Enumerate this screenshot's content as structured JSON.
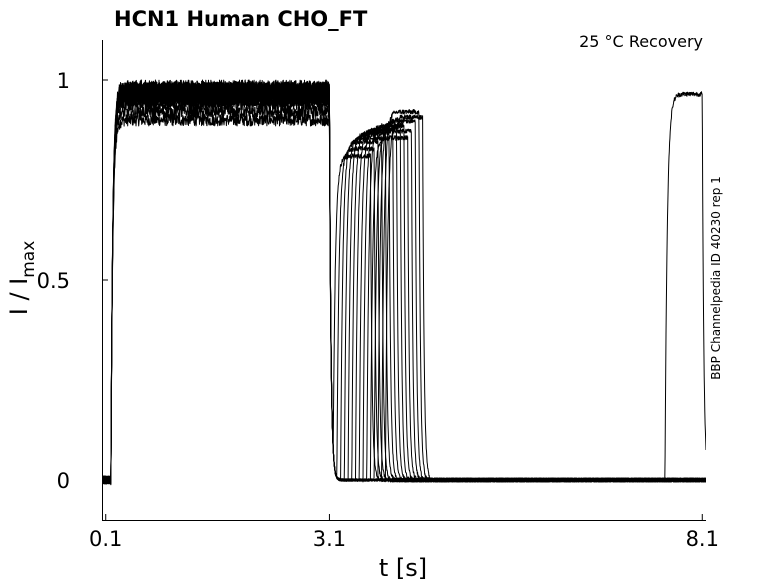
{
  "chart_data": {
    "type": "line",
    "title": "HCN1  Human  CHO_FT",
    "subtitle": "25 °C  Recovery",
    "side_label": "BBP Channelpedia ID 40230 rep 1",
    "xlabel": "t [s]",
    "ylabel_main": "I / I",
    "ylabel_sub": "max",
    "xlim": [
      0.05,
      8.15
    ],
    "ylim": [
      -0.1,
      1.1
    ],
    "x_ticks": [
      {
        "value": 0.1,
        "label": "0.1"
      },
      {
        "value": 3.1,
        "label": "3.1"
      },
      {
        "value": 8.1,
        "label": "8.1"
      }
    ],
    "y_ticks": [
      {
        "value": 0,
        "label": "0"
      },
      {
        "value": 0.5,
        "label": "0.5"
      },
      {
        "value": 1,
        "label": "1"
      }
    ],
    "grid": false,
    "legend": "none",
    "protocol": {
      "baseline_level": 0.0,
      "first_pulse_start": 0.17,
      "first_pulse_end": 3.1,
      "first_pulse_tau": 0.025,
      "first_pulse_plateaus": [
        0.9,
        0.92,
        0.94,
        0.95,
        0.96,
        0.965,
        0.97,
        0.975,
        0.98,
        0.985,
        0.95,
        0.96,
        0.97,
        0.98,
        0.955,
        0.965
      ],
      "deactivation_tau": 0.02,
      "second_pulse_duration": 0.5,
      "recovery_intervals": [
        0.05,
        0.1,
        0.15,
        0.2,
        0.25,
        0.3,
        0.35,
        0.4,
        0.45,
        0.5,
        0.55,
        0.6,
        0.65,
        0.7,
        0.75,
        4.5
      ]
    }
  }
}
